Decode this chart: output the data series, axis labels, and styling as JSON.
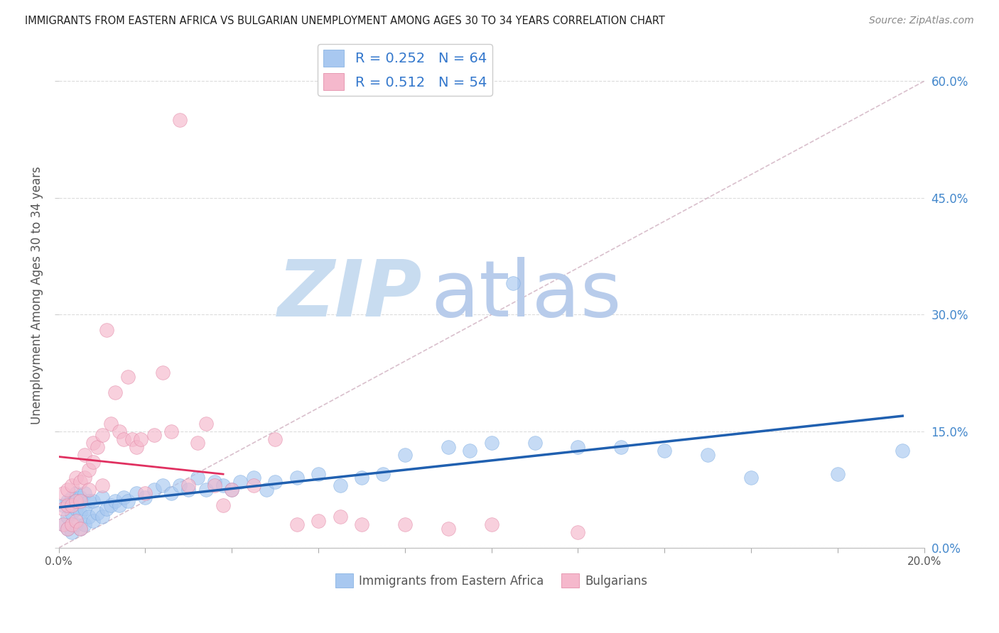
{
  "title": "IMMIGRANTS FROM EASTERN AFRICA VS BULGARIAN UNEMPLOYMENT AMONG AGES 30 TO 34 YEARS CORRELATION CHART",
  "source": "Source: ZipAtlas.com",
  "ylabel": "Unemployment Among Ages 30 to 34 years",
  "xlim": [
    0.0,
    0.2
  ],
  "ylim": [
    0.0,
    0.65
  ],
  "xticks": [
    0.0,
    0.02,
    0.04,
    0.06,
    0.08,
    0.1,
    0.12,
    0.14,
    0.16,
    0.18,
    0.2
  ],
  "yticks": [
    0.0,
    0.15,
    0.3,
    0.45,
    0.6
  ],
  "background_color": "#ffffff",
  "grid_color": "#cccccc",
  "blue_color": "#a8c8f0",
  "blue_edge_color": "#7aaae0",
  "blue_line_color": "#2060b0",
  "pink_color": "#f5b8cc",
  "pink_edge_color": "#e080a0",
  "pink_line_color": "#e03060",
  "ref_line_color": "#d0a0b0",
  "watermark_zip_color": "#c8ddf5",
  "watermark_atlas_color": "#b0cce8",
  "R_blue": 0.252,
  "N_blue": 64,
  "R_pink": 0.512,
  "N_pink": 54,
  "legend_label_blue": "Immigrants from Eastern Africa",
  "legend_label_pink": "Bulgarians",
  "blue_scatter_x": [
    0.001,
    0.001,
    0.002,
    0.002,
    0.002,
    0.003,
    0.003,
    0.003,
    0.004,
    0.004,
    0.004,
    0.005,
    0.005,
    0.005,
    0.006,
    0.006,
    0.006,
    0.007,
    0.007,
    0.008,
    0.008,
    0.009,
    0.01,
    0.01,
    0.011,
    0.012,
    0.013,
    0.014,
    0.015,
    0.016,
    0.018,
    0.02,
    0.022,
    0.024,
    0.026,
    0.028,
    0.03,
    0.032,
    0.034,
    0.036,
    0.038,
    0.04,
    0.042,
    0.045,
    0.048,
    0.05,
    0.055,
    0.06,
    0.065,
    0.07,
    0.075,
    0.08,
    0.09,
    0.095,
    0.1,
    0.105,
    0.11,
    0.12,
    0.13,
    0.14,
    0.15,
    0.16,
    0.18,
    0.195
  ],
  "blue_scatter_y": [
    0.03,
    0.055,
    0.025,
    0.04,
    0.06,
    0.02,
    0.045,
    0.065,
    0.03,
    0.05,
    0.07,
    0.025,
    0.045,
    0.065,
    0.03,
    0.05,
    0.07,
    0.04,
    0.06,
    0.035,
    0.06,
    0.045,
    0.04,
    0.065,
    0.05,
    0.055,
    0.06,
    0.055,
    0.065,
    0.06,
    0.07,
    0.065,
    0.075,
    0.08,
    0.07,
    0.08,
    0.075,
    0.09,
    0.075,
    0.085,
    0.08,
    0.075,
    0.085,
    0.09,
    0.075,
    0.085,
    0.09,
    0.095,
    0.08,
    0.09,
    0.095,
    0.12,
    0.13,
    0.125,
    0.135,
    0.34,
    0.135,
    0.13,
    0.13,
    0.125,
    0.12,
    0.09,
    0.095,
    0.125
  ],
  "pink_scatter_x": [
    0.001,
    0.001,
    0.001,
    0.002,
    0.002,
    0.002,
    0.003,
    0.003,
    0.003,
    0.004,
    0.004,
    0.004,
    0.005,
    0.005,
    0.005,
    0.006,
    0.006,
    0.007,
    0.007,
    0.008,
    0.008,
    0.009,
    0.01,
    0.01,
    0.011,
    0.012,
    0.013,
    0.014,
    0.015,
    0.016,
    0.017,
    0.018,
    0.019,
    0.02,
    0.022,
    0.024,
    0.026,
    0.028,
    0.03,
    0.032,
    0.034,
    0.036,
    0.038,
    0.04,
    0.045,
    0.05,
    0.055,
    0.06,
    0.065,
    0.07,
    0.08,
    0.09,
    0.1,
    0.12
  ],
  "pink_scatter_y": [
    0.03,
    0.05,
    0.07,
    0.025,
    0.055,
    0.075,
    0.03,
    0.055,
    0.08,
    0.035,
    0.06,
    0.09,
    0.025,
    0.06,
    0.085,
    0.09,
    0.12,
    0.075,
    0.1,
    0.11,
    0.135,
    0.13,
    0.08,
    0.145,
    0.28,
    0.16,
    0.2,
    0.15,
    0.14,
    0.22,
    0.14,
    0.13,
    0.14,
    0.07,
    0.145,
    0.225,
    0.15,
    0.55,
    0.08,
    0.135,
    0.16,
    0.08,
    0.055,
    0.075,
    0.08,
    0.14,
    0.03,
    0.035,
    0.04,
    0.03,
    0.03,
    0.025,
    0.03,
    0.02
  ]
}
